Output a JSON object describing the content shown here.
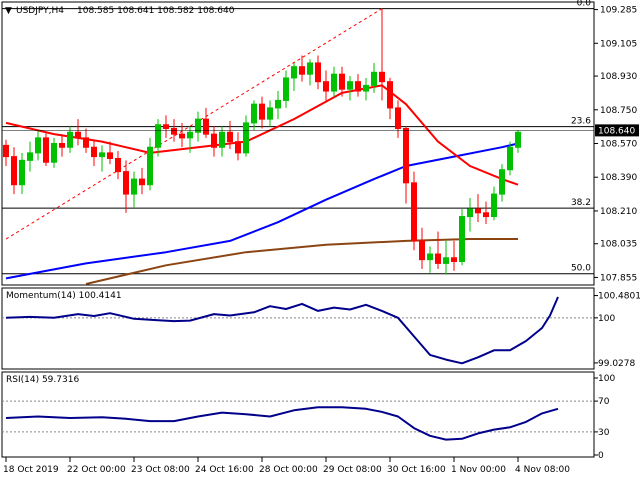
{
  "chart_data": [
    {
      "type": "candlestick",
      "panel": "price",
      "header": {
        "triangle": "▼",
        "symbol": "USDJPY,H4",
        "ohlc": "108.585 108.641 108.582 108.640"
      },
      "ylim": [
        107.82,
        109.32
      ],
      "y_ticks": [
        "109.285",
        "109.105",
        "108.930",
        "108.750",
        "108.570",
        "108.390",
        "108.210",
        "108.035",
        "107.855"
      ],
      "current_price": "108.640",
      "fib_levels": [
        {
          "label": "0.0",
          "value": 109.29
        },
        {
          "label": "23.6",
          "value": 108.66
        },
        {
          "label": "38.2",
          "value": 108.225
        },
        {
          "label": "50.0",
          "value": 107.875
        }
      ],
      "colors": {
        "bull": "#00c000",
        "bear": "#ff0000",
        "sma_fast": "#ff0000",
        "sma_mid": "#0000ff",
        "sma_slow": "#8b4513",
        "trendline": "#ff0000"
      },
      "candles": [
        [
          108.56,
          108.59,
          108.45,
          108.5
        ],
        [
          108.5,
          108.55,
          108.3,
          108.35
        ],
        [
          108.35,
          108.52,
          108.3,
          108.48
        ],
        [
          108.48,
          108.58,
          108.42,
          108.52
        ],
        [
          108.52,
          108.64,
          108.48,
          108.6
        ],
        [
          108.6,
          108.63,
          108.45,
          108.47
        ],
        [
          108.47,
          108.6,
          108.44,
          108.57
        ],
        [
          108.57,
          108.62,
          108.5,
          108.55
        ],
        [
          108.55,
          108.66,
          108.52,
          108.63
        ],
        [
          108.63,
          108.7,
          108.56,
          108.6
        ],
        [
          108.6,
          108.65,
          108.52,
          108.55
        ],
        [
          108.55,
          108.59,
          108.45,
          108.5
        ],
        [
          108.5,
          108.56,
          108.42,
          108.52
        ],
        [
          108.52,
          108.58,
          108.46,
          108.49
        ],
        [
          108.49,
          108.53,
          108.38,
          108.42
        ],
        [
          108.42,
          108.48,
          108.2,
          108.3
        ],
        [
          108.3,
          108.42,
          108.23,
          108.38
        ],
        [
          108.38,
          108.44,
          108.3,
          108.35
        ],
        [
          108.35,
          108.6,
          108.32,
          108.55
        ],
        [
          108.55,
          108.7,
          108.5,
          108.67
        ],
        [
          108.67,
          108.72,
          108.6,
          108.65
        ],
        [
          108.65,
          108.7,
          108.58,
          108.62
        ],
        [
          108.62,
          108.68,
          108.55,
          108.6
        ],
        [
          108.6,
          108.66,
          108.52,
          108.63
        ],
        [
          108.63,
          108.74,
          108.58,
          108.7
        ],
        [
          108.7,
          108.76,
          108.6,
          108.62
        ],
        [
          108.62,
          108.66,
          108.5,
          108.55
        ],
        [
          108.55,
          108.66,
          108.5,
          108.63
        ],
        [
          108.63,
          108.69,
          108.54,
          108.58
        ],
        [
          108.58,
          108.63,
          108.48,
          108.52
        ],
        [
          108.52,
          108.72,
          108.5,
          108.68
        ],
        [
          108.68,
          108.8,
          108.64,
          108.78
        ],
        [
          108.78,
          108.82,
          108.65,
          108.7
        ],
        [
          108.7,
          108.8,
          108.66,
          108.76
        ],
        [
          108.76,
          108.85,
          108.7,
          108.8
        ],
        [
          108.8,
          108.96,
          108.76,
          108.92
        ],
        [
          108.92,
          109.0,
          108.85,
          108.98
        ],
        [
          108.98,
          109.04,
          108.9,
          108.94
        ],
        [
          108.94,
          109.02,
          108.88,
          109.0
        ],
        [
          109.0,
          109.04,
          108.86,
          108.9
        ],
        [
          108.9,
          108.96,
          108.8,
          108.85
        ],
        [
          108.85,
          108.98,
          108.82,
          108.94
        ],
        [
          108.94,
          108.98,
          108.82,
          108.86
        ],
        [
          108.86,
          108.93,
          108.8,
          108.9
        ],
        [
          108.9,
          108.94,
          108.82,
          108.85
        ],
        [
          108.85,
          108.92,
          108.8,
          108.88
        ],
        [
          108.88,
          109.0,
          108.84,
          108.95
        ],
        [
          108.95,
          109.29,
          108.8,
          108.9
        ],
        [
          108.9,
          108.92,
          108.7,
          108.76
        ],
        [
          108.76,
          108.8,
          108.6,
          108.65
        ],
        [
          108.65,
          108.66,
          108.25,
          108.36
        ],
        [
          108.36,
          108.42,
          108.0,
          108.05
        ],
        [
          108.05,
          108.12,
          107.9,
          107.95
        ],
        [
          107.95,
          108.02,
          107.88,
          107.98
        ],
        [
          107.98,
          108.1,
          107.9,
          107.93
        ],
        [
          107.93,
          108.05,
          107.87,
          107.96
        ],
        [
          107.96,
          108.05,
          107.89,
          107.94
        ],
        [
          107.94,
          108.22,
          107.92,
          108.18
        ],
        [
          108.18,
          108.28,
          108.1,
          108.22
        ],
        [
          108.22,
          108.3,
          108.15,
          108.2
        ],
        [
          108.2,
          108.26,
          108.14,
          108.18
        ],
        [
          108.18,
          108.34,
          108.16,
          108.3
        ],
        [
          108.3,
          108.46,
          108.26,
          108.43
        ],
        [
          108.43,
          108.58,
          108.4,
          108.55
        ],
        [
          108.55,
          108.64,
          108.52,
          108.63
        ]
      ],
      "sma_fast": [
        [
          0,
          108.68
        ],
        [
          6,
          108.62
        ],
        [
          12,
          108.58
        ],
        [
          18,
          108.52
        ],
        [
          24,
          108.55
        ],
        [
          30,
          108.58
        ],
        [
          36,
          108.7
        ],
        [
          42,
          108.84
        ],
        [
          47,
          108.88
        ],
        [
          50,
          108.78
        ],
        [
          54,
          108.58
        ],
        [
          58,
          108.45
        ],
        [
          62,
          108.38
        ],
        [
          64,
          108.35
        ]
      ],
      "sma_mid": [
        [
          0,
          107.85
        ],
        [
          10,
          107.93
        ],
        [
          20,
          107.99
        ],
        [
          28,
          108.05
        ],
        [
          34,
          108.15
        ],
        [
          40,
          108.27
        ],
        [
          46,
          108.38
        ],
        [
          50,
          108.45
        ],
        [
          56,
          108.5
        ],
        [
          62,
          108.55
        ],
        [
          64,
          108.57
        ]
      ],
      "sma_slow": [
        [
          10,
          107.82
        ],
        [
          20,
          107.92
        ],
        [
          30,
          107.99
        ],
        [
          40,
          108.03
        ],
        [
          50,
          108.05
        ],
        [
          58,
          108.06
        ],
        [
          64,
          108.06
        ]
      ],
      "trendline": [
        [
          0,
          108.06
        ],
        [
          47,
          109.29
        ]
      ]
    },
    {
      "type": "line",
      "panel": "momentum",
      "title": "Momentum(14) 100.4141",
      "ylim": [
        98.94,
        100.6
      ],
      "y_ticks": [
        "100.4801",
        "100",
        "99.0278"
      ],
      "level": 100,
      "color": "#00008b",
      "values": [
        [
          0,
          100.0
        ],
        [
          3,
          100.02
        ],
        [
          6,
          100.0
        ],
        [
          9,
          100.08
        ],
        [
          11,
          100.04
        ],
        [
          13,
          100.1
        ],
        [
          16,
          99.98
        ],
        [
          19,
          99.95
        ],
        [
          21,
          99.93
        ],
        [
          23,
          99.94
        ],
        [
          26,
          100.08
        ],
        [
          28,
          100.05
        ],
        [
          31,
          100.12
        ],
        [
          33,
          100.25
        ],
        [
          35,
          100.19
        ],
        [
          37,
          100.3
        ],
        [
          39,
          100.15
        ],
        [
          41,
          100.22
        ],
        [
          43,
          100.18
        ],
        [
          45,
          100.28
        ],
        [
          47,
          100.15
        ],
        [
          49,
          100.0
        ],
        [
          51,
          99.6
        ],
        [
          53,
          99.2
        ],
        [
          55,
          99.1
        ],
        [
          57,
          99.02
        ],
        [
          59,
          99.15
        ],
        [
          61,
          99.3
        ],
        [
          63,
          99.3
        ],
        [
          65,
          99.5
        ],
        [
          67,
          99.78
        ],
        [
          68,
          100.05
        ],
        [
          69,
          100.45
        ]
      ]
    },
    {
      "type": "line",
      "panel": "rsi",
      "title": "RSI(14) 59.7316",
      "ylim": [
        0,
        100
      ],
      "y_ticks": [
        "100",
        "70",
        "30",
        "0"
      ],
      "levels": [
        70,
        30
      ],
      "color": "#00008b",
      "values": [
        [
          0,
          48
        ],
        [
          4,
          50
        ],
        [
          8,
          48
        ],
        [
          12,
          49
        ],
        [
          15,
          47
        ],
        [
          18,
          44
        ],
        [
          21,
          44
        ],
        [
          24,
          50
        ],
        [
          27,
          55
        ],
        [
          30,
          53
        ],
        [
          33,
          50
        ],
        [
          36,
          58
        ],
        [
          39,
          62
        ],
        [
          42,
          62
        ],
        [
          45,
          60
        ],
        [
          47,
          56
        ],
        [
          49,
          50
        ],
        [
          51,
          35
        ],
        [
          53,
          25
        ],
        [
          55,
          20
        ],
        [
          57,
          21
        ],
        [
          59,
          28
        ],
        [
          61,
          33
        ],
        [
          63,
          36
        ],
        [
          65,
          43
        ],
        [
          67,
          54
        ],
        [
          69,
          60
        ]
      ]
    }
  ],
  "x_axis_labels": [
    {
      "text": "18 Oct 2019",
      "i": 0
    },
    {
      "text": "22 Oct 00:00",
      "i": 8
    },
    {
      "text": "23 Oct 08:00",
      "i": 16
    },
    {
      "text": "24 Oct 16:00",
      "i": 24
    },
    {
      "text": "28 Oct 00:00",
      "i": 32
    },
    {
      "text": "29 Oct 08:00",
      "i": 40
    },
    {
      "text": "30 Oct 16:00",
      "i": 48
    },
    {
      "text": "1 Nov 00:00",
      "i": 56
    },
    {
      "text": "4 Nov 08:00",
      "i": 64
    }
  ]
}
